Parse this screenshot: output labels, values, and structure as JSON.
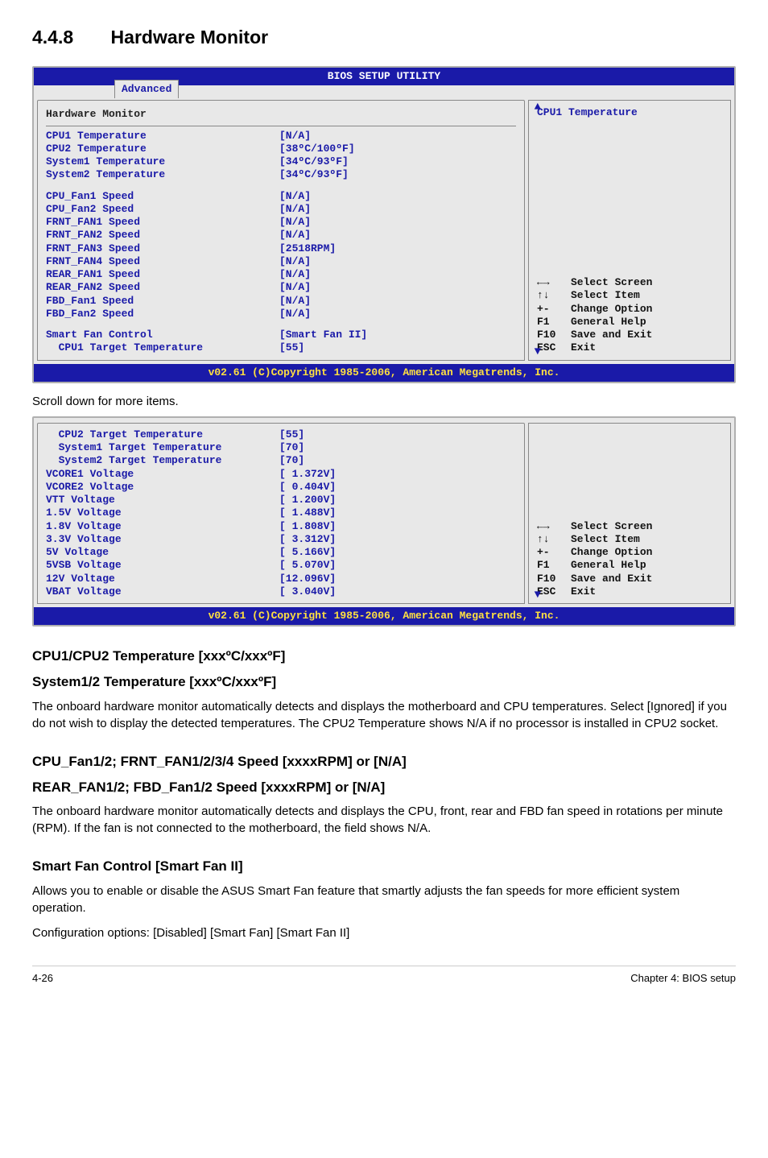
{
  "section": {
    "number": "4.4.8",
    "title": "Hardware Monitor"
  },
  "bios1": {
    "title": "BIOS SETUP UTILITY",
    "tab": "Advanced",
    "panel_title": "Hardware Monitor",
    "right_title": "CPU1 Temperature",
    "footer": "v02.61 (C)Copyright 1985-2006, American Megatrends, Inc.",
    "items_block1": [
      {
        "label": "CPU1 Temperature",
        "value": "[N/A]"
      },
      {
        "label": "CPU2 Temperature",
        "value": "[38ºC/100ºF]"
      },
      {
        "label": "System1 Temperature",
        "value": "[34ºC/93ºF]"
      },
      {
        "label": "System2 Temperature",
        "value": "[34ºC/93ºF]"
      }
    ],
    "items_block2": [
      {
        "label": "CPU_Fan1 Speed",
        "value": "[N/A]"
      },
      {
        "label": "CPU_Fan2 Speed",
        "value": "[N/A]"
      },
      {
        "label": "FRNT_FAN1 Speed",
        "value": "[N/A]"
      },
      {
        "label": "FRNT_FAN2 Speed",
        "value": "[N/A]"
      },
      {
        "label": "FRNT_FAN3 Speed",
        "value": "[2518RPM]"
      },
      {
        "label": "FRNT_FAN4 Speed",
        "value": "[N/A]"
      },
      {
        "label": "REAR_FAN1 Speed",
        "value": "[N/A]"
      },
      {
        "label": "REAR_FAN2 Speed",
        "value": "[N/A]"
      },
      {
        "label": "FBD_Fan1 Speed",
        "value": "[N/A]"
      },
      {
        "label": "FBD_Fan2 Speed",
        "value": "[N/A]"
      }
    ],
    "items_block3": [
      {
        "label": "Smart Fan Control",
        "value": "[Smart Fan II]"
      },
      {
        "label": "  CPU1 Target Temperature",
        "value": "[55]"
      }
    ],
    "help": [
      {
        "k": "←→",
        "t": "Select Screen"
      },
      {
        "k": "↑↓",
        "t": "Select Item"
      },
      {
        "k": "+-",
        "t": "Change Option"
      },
      {
        "k": "F1",
        "t": "General Help"
      },
      {
        "k": "F10",
        "t": "Save and Exit"
      },
      {
        "k": "ESC",
        "t": "Exit"
      }
    ]
  },
  "scroll_note": "Scroll down for more items.",
  "bios2": {
    "footer": "v02.61 (C)Copyright 1985-2006, American Megatrends, Inc.",
    "items": [
      {
        "label": "  CPU2 Target Temperature",
        "value": "[55]"
      },
      {
        "label": "  System1 Target Temperature",
        "value": "[70]"
      },
      {
        "label": "  System2 Target Temperature",
        "value": "[70]"
      },
      {
        "label": "VCORE1 Voltage",
        "value": "[ 1.372V]"
      },
      {
        "label": "VCORE2 Voltage",
        "value": "[ 0.404V]"
      },
      {
        "label": "VTT Voltage",
        "value": "[ 1.200V]"
      },
      {
        "label": "1.5V Voltage",
        "value": "[ 1.488V]"
      },
      {
        "label": "1.8V Voltage",
        "value": "[ 1.808V]"
      },
      {
        "label": "3.3V Voltage",
        "value": "[ 3.312V]"
      },
      {
        "label": "5V Voltage",
        "value": "[ 5.166V]"
      },
      {
        "label": "5VSB Voltage",
        "value": "[ 5.070V]"
      },
      {
        "label": "12V Voltage",
        "value": "[12.096V]"
      },
      {
        "label": "VBAT Voltage",
        "value": "[ 3.040V]"
      }
    ],
    "help": [
      {
        "k": "←→",
        "t": "Select Screen"
      },
      {
        "k": "↑↓",
        "t": "Select Item"
      },
      {
        "k": "+-",
        "t": "Change Option"
      },
      {
        "k": "F1",
        "t": "General Help"
      },
      {
        "k": "F10",
        "t": "Save and Exit"
      },
      {
        "k": "ESC",
        "t": "Exit"
      }
    ]
  },
  "sub1": {
    "h1": "CPU1/CPU2 Temperature [xxxºC/xxxºF]",
    "h2": "System1/2 Temperature [xxxºC/xxxºF]",
    "p": "The onboard hardware monitor automatically detects and displays the motherboard and CPU temperatures. Select [Ignored] if you do not wish to display the detected temperatures. The CPU2 Temperature shows N/A if no processor is installed in CPU2 socket."
  },
  "sub2": {
    "h1": "CPU_Fan1/2; FRNT_FAN1/2/3/4 Speed [xxxxRPM] or [N/A]",
    "h2": "REAR_FAN1/2; FBD_Fan1/2 Speed [xxxxRPM] or [N/A]",
    "p": "The onboard hardware monitor automatically detects and displays the CPU, front, rear and FBD fan speed in rotations per minute (RPM). If the fan is not connected to the motherboard, the field shows N/A."
  },
  "sub3": {
    "h": "Smart Fan Control [Smart Fan II]",
    "p1": "Allows you to enable or disable the ASUS Smart Fan feature that smartly adjusts the fan speeds for more efficient system operation.",
    "p2": "Configuration options: [Disabled] [Smart Fan] [Smart Fan II]"
  },
  "page_footer": {
    "left": "4-26",
    "right": "Chapter 4: BIOS setup"
  }
}
